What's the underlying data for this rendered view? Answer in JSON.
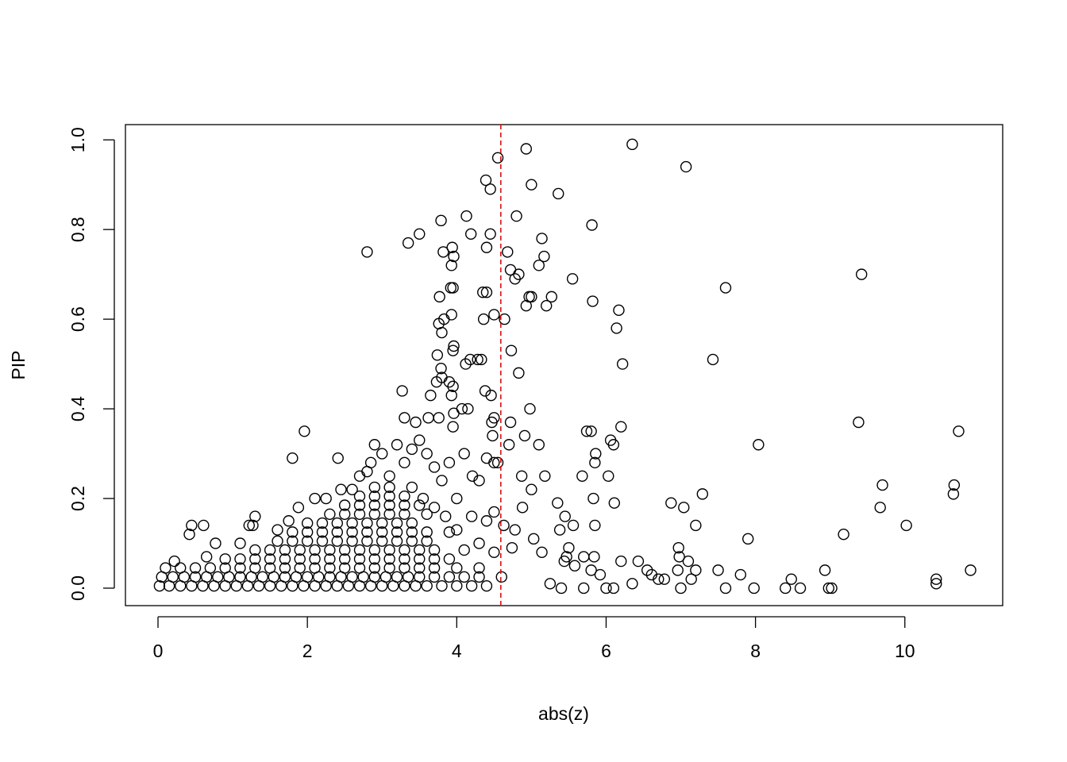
{
  "chart_data": {
    "type": "scatter",
    "x_label": "abs(z)",
    "y_label": "PIP",
    "marker_color": "#000000",
    "reference_line": {
      "x": 4.59,
      "color": "#ff0000"
    },
    "xlim": [
      -0.436,
      11.31
    ],
    "ylim": [
      -0.039,
      1.034
    ],
    "xticks": [
      0,
      2,
      4,
      6,
      8,
      10
    ],
    "yticks": [
      {
        "value": 0,
        "label": "0.0"
      },
      {
        "value": 0.2,
        "label": "0.2"
      },
      {
        "value": 0.4,
        "label": "0.4"
      },
      {
        "value": 0.6,
        "label": "0.6"
      },
      {
        "value": 0.8,
        "label": "0.8"
      },
      {
        "value": 1.0,
        "label": "1.0"
      }
    ],
    "grid": false,
    "x": [
      4.93,
      6.35,
      7.07,
      4.55,
      4.39,
      4.45,
      5.0,
      5.36,
      4.8,
      3.79,
      4.13,
      5.81,
      4.19,
      3.5,
      3.35,
      4.45,
      4.4,
      3.94,
      5.14,
      2.8,
      3.82,
      3.96,
      5.17,
      4.68,
      3.93,
      5.1,
      4.72,
      4.83,
      4.78,
      5.55,
      9.42,
      7.6,
      3.92,
      3.95,
      4.35,
      4.4,
      3.77,
      4.97,
      5.0,
      5.27,
      5.2,
      4.93,
      5.82,
      6.17,
      3.93,
      3.83,
      4.36,
      4.5,
      4.64,
      3.76,
      3.8,
      6.14,
      3.96,
      3.95,
      3.74,
      4.73,
      4.28,
      4.33,
      4.18,
      4.12,
      6.22,
      7.43,
      4.83,
      3.79,
      3.8,
      3.73,
      3.9,
      3.95,
      3.27,
      4.38,
      4.46,
      3.93,
      3.65,
      4.98,
      3.96,
      4.07,
      4.15,
      3.3,
      3.62,
      3.76,
      4.5,
      4.47,
      4.72,
      3.95,
      3.45,
      9.38,
      10.72,
      4.48,
      4.91,
      6.06,
      6.2,
      5.8,
      5.74,
      6.1,
      5.1,
      4.7,
      8.04,
      1.96,
      1.8,
      2.41,
      4.55,
      5.86,
      4.4,
      4.5,
      5.85,
      5.68,
      6.03,
      5.18,
      4.87,
      4.21,
      4.3,
      9.7,
      10.66,
      10.65,
      7.29,
      5.0,
      4.88,
      5.83,
      6.11,
      6.87,
      7.04,
      9.67,
      5.35,
      4.5,
      4.4,
      4.63,
      4.78,
      5.45,
      5.56,
      5.38,
      5.85,
      7.2,
      10.02,
      9.18,
      7.9,
      5.03,
      4.74,
      5.14,
      5.5,
      5.47,
      6.97,
      6.98,
      5.7,
      5.84,
      5.58,
      5.44,
      6.2,
      6.43,
      6.55,
      7.1,
      7.2,
      7.5,
      7.8,
      8.48,
      8.93,
      10.88,
      10.42,
      10.42,
      8.4,
      8.6,
      8.98,
      9.02,
      7.98,
      7.6,
      7.0,
      7.14,
      6.78,
      6.35,
      6.1,
      6.0,
      5.8,
      5.92,
      5.25,
      5.4,
      5.7,
      6.61,
      6.96,
      6.7,
      0.42,
      0.45,
      0.61,
      0.77,
      0.65,
      0.22,
      1.1,
      1.22,
      1.3,
      1.27,
      1.6,
      1.75,
      1.88,
      2.1,
      2.25,
      2.45,
      2.6,
      2.7,
      2.8,
      2.9,
      2.85,
      3.0,
      3.2,
      3.1,
      3.3,
      3.4,
      3.5,
      3.6,
      3.7,
      3.8,
      3.9,
      4.0,
      4.1,
      3.55,
      3.7,
      3.85,
      4.2,
      4.0,
      4.3,
      4.5,
      0.02,
      0.15,
      0.3,
      0.45,
      0.6,
      0.75,
      0.9,
      1.05,
      1.2,
      1.35,
      1.5,
      1.65,
      1.8,
      1.95,
      2.1,
      2.25,
      2.4,
      2.55,
      2.7,
      2.85,
      3.0,
      3.15,
      3.3,
      3.45,
      3.6,
      3.8,
      4.0,
      4.2,
      4.4,
      0.05,
      0.2,
      0.35,
      0.5,
      0.65,
      0.8,
      0.95,
      1.1,
      1.25,
      1.4,
      1.55,
      1.7,
      1.85,
      2.0,
      2.15,
      2.3,
      2.45,
      2.6,
      2.75,
      2.9,
      3.05,
      3.2,
      3.35,
      3.5,
      3.7,
      3.9,
      4.1,
      4.3,
      4.6,
      0.1,
      0.3,
      0.5,
      0.7,
      0.9,
      1.1,
      1.3,
      1.5,
      1.7,
      1.9,
      2.1,
      2.3,
      2.5,
      2.7,
      2.9,
      3.1,
      3.3,
      3.5,
      3.7,
      4.0,
      4.3,
      0.9,
      1.1,
      1.3,
      1.5,
      1.7,
      1.9,
      2.1,
      2.3,
      2.5,
      2.7,
      2.9,
      3.1,
      3.3,
      3.5,
      3.7,
      3.9,
      1.3,
      1.5,
      1.7,
      1.9,
      2.1,
      2.3,
      2.5,
      2.7,
      2.9,
      3.1,
      3.3,
      3.5,
      3.7,
      4.1,
      1.6,
      1.8,
      2.0,
      2.2,
      2.4,
      2.6,
      2.8,
      3.0,
      3.2,
      3.4,
      3.6,
      1.8,
      2.0,
      2.2,
      2.4,
      2.6,
      2.8,
      3.0,
      3.2,
      3.4,
      3.6,
      3.9,
      2.0,
      2.2,
      2.4,
      2.6,
      2.8,
      3.0,
      3.2,
      3.4,
      2.3,
      2.5,
      2.7,
      2.9,
      3.1,
      3.3,
      3.6,
      2.5,
      2.7,
      2.9,
      3.1,
      3.3,
      3.5,
      2.7,
      2.9,
      3.1,
      3.3,
      2.9,
      3.1,
      3.4
    ],
    "values": [
      0.98,
      0.99,
      0.94,
      0.96,
      0.91,
      0.89,
      0.9,
      0.88,
      0.83,
      0.82,
      0.83,
      0.81,
      0.79,
      0.79,
      0.77,
      0.79,
      0.76,
      0.76,
      0.78,
      0.75,
      0.75,
      0.74,
      0.74,
      0.75,
      0.72,
      0.72,
      0.71,
      0.7,
      0.69,
      0.69,
      0.7,
      0.67,
      0.67,
      0.67,
      0.66,
      0.66,
      0.65,
      0.65,
      0.65,
      0.65,
      0.63,
      0.63,
      0.64,
      0.62,
      0.61,
      0.6,
      0.6,
      0.61,
      0.6,
      0.59,
      0.57,
      0.58,
      0.54,
      0.53,
      0.52,
      0.53,
      0.51,
      0.51,
      0.51,
      0.5,
      0.5,
      0.51,
      0.48,
      0.49,
      0.47,
      0.46,
      0.46,
      0.45,
      0.44,
      0.44,
      0.43,
      0.43,
      0.43,
      0.4,
      0.39,
      0.4,
      0.4,
      0.38,
      0.38,
      0.38,
      0.38,
      0.37,
      0.37,
      0.36,
      0.37,
      0.37,
      0.35,
      0.34,
      0.34,
      0.33,
      0.36,
      0.35,
      0.35,
      0.32,
      0.32,
      0.32,
      0.32,
      0.35,
      0.29,
      0.29,
      0.28,
      0.3,
      0.29,
      0.28,
      0.28,
      0.25,
      0.25,
      0.25,
      0.25,
      0.25,
      0.24,
      0.23,
      0.23,
      0.21,
      0.21,
      0.22,
      0.18,
      0.2,
      0.19,
      0.19,
      0.18,
      0.18,
      0.19,
      0.17,
      0.15,
      0.14,
      0.13,
      0.16,
      0.14,
      0.13,
      0.14,
      0.14,
      0.14,
      0.12,
      0.11,
      0.11,
      0.09,
      0.08,
      0.09,
      0.07,
      0.09,
      0.07,
      0.07,
      0.07,
      0.05,
      0.06,
      0.06,
      0.06,
      0.04,
      0.06,
      0.04,
      0.04,
      0.03,
      0.02,
      0.04,
      0.04,
      0.02,
      0.01,
      0.0,
      0.0,
      0.0,
      0.0,
      0.0,
      0.0,
      0.0,
      0.02,
      0.02,
      0.01,
      0.0,
      0.0,
      0.04,
      0.03,
      0.01,
      0.0,
      0.0,
      0.03,
      0.04,
      0.02,
      0.12,
      0.14,
      0.14,
      0.1,
      0.07,
      0.06,
      0.1,
      0.14,
      0.16,
      0.14,
      0.13,
      0.15,
      0.18,
      0.2,
      0.2,
      0.22,
      0.22,
      0.25,
      0.26,
      0.32,
      0.28,
      0.3,
      0.32,
      0.25,
      0.28,
      0.31,
      0.33,
      0.3,
      0.27,
      0.24,
      0.28,
      0.2,
      0.3,
      0.2,
      0.18,
      0.16,
      0.16,
      0.13,
      0.1,
      0.08,
      0.005,
      0.005,
      0.005,
      0.005,
      0.005,
      0.005,
      0.005,
      0.005,
      0.005,
      0.005,
      0.005,
      0.005,
      0.005,
      0.005,
      0.005,
      0.005,
      0.005,
      0.005,
      0.005,
      0.005,
      0.005,
      0.005,
      0.005,
      0.005,
      0.005,
      0.005,
      0.005,
      0.005,
      0.005,
      0.025,
      0.025,
      0.025,
      0.025,
      0.025,
      0.025,
      0.025,
      0.025,
      0.025,
      0.025,
      0.025,
      0.025,
      0.025,
      0.025,
      0.025,
      0.025,
      0.025,
      0.025,
      0.025,
      0.025,
      0.025,
      0.025,
      0.025,
      0.025,
      0.025,
      0.025,
      0.025,
      0.025,
      0.025,
      0.045,
      0.045,
      0.045,
      0.045,
      0.045,
      0.045,
      0.045,
      0.045,
      0.045,
      0.045,
      0.045,
      0.045,
      0.045,
      0.045,
      0.045,
      0.045,
      0.045,
      0.045,
      0.045,
      0.045,
      0.045,
      0.065,
      0.065,
      0.065,
      0.065,
      0.065,
      0.065,
      0.065,
      0.065,
      0.065,
      0.065,
      0.065,
      0.065,
      0.065,
      0.065,
      0.065,
      0.065,
      0.085,
      0.085,
      0.085,
      0.085,
      0.085,
      0.085,
      0.085,
      0.085,
      0.085,
      0.085,
      0.085,
      0.085,
      0.085,
      0.085,
      0.105,
      0.105,
      0.105,
      0.105,
      0.105,
      0.105,
      0.105,
      0.105,
      0.105,
      0.105,
      0.105,
      0.125,
      0.125,
      0.125,
      0.125,
      0.125,
      0.125,
      0.125,
      0.125,
      0.125,
      0.125,
      0.125,
      0.145,
      0.145,
      0.145,
      0.145,
      0.145,
      0.145,
      0.145,
      0.145,
      0.165,
      0.165,
      0.165,
      0.165,
      0.165,
      0.165,
      0.165,
      0.185,
      0.185,
      0.185,
      0.185,
      0.185,
      0.185,
      0.205,
      0.205,
      0.205,
      0.205,
      0.225,
      0.225,
      0.225
    ]
  }
}
